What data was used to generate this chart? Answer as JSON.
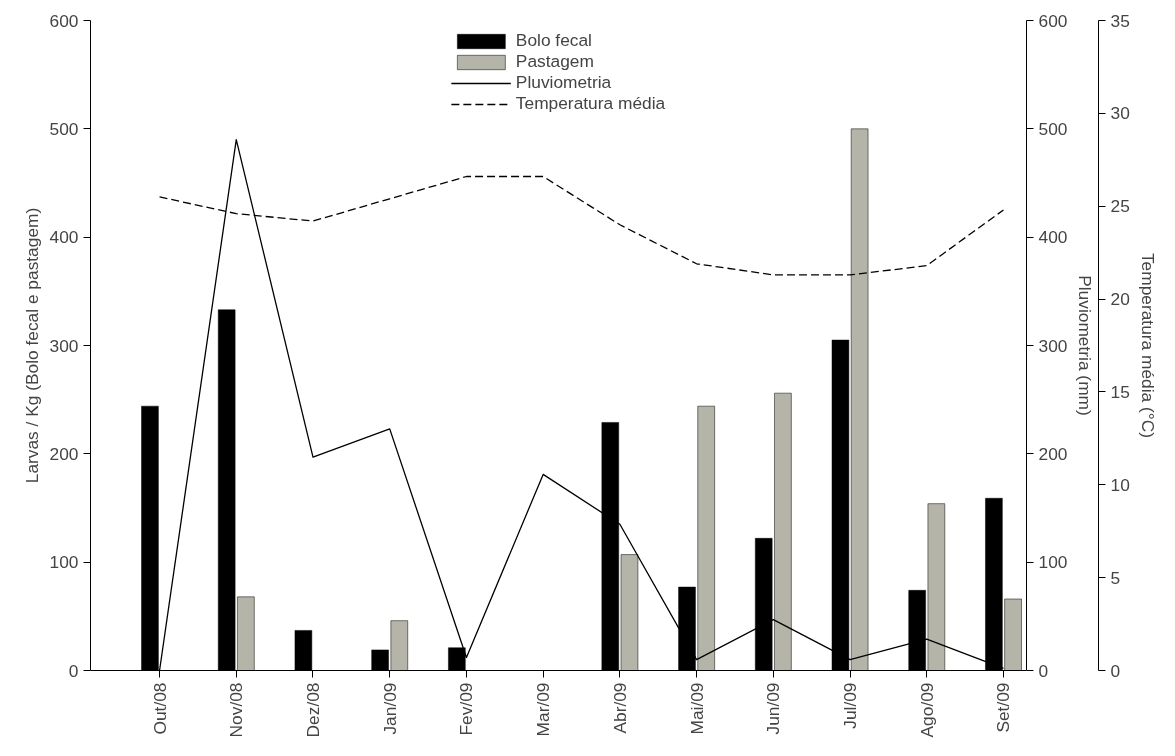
{
  "chart_data": {
    "type": "bar",
    "categories": [
      "Out/08",
      "Nov/08",
      "Dez/08",
      "Jan/09",
      "Fev/09",
      "Mar/09",
      "Abr/09",
      "Mai/09",
      "Jun/09",
      "Jul/09",
      "Ago/09",
      "Set/09"
    ],
    "ylabel": "Larvas / Kg (Bolo fecal e pastagem)",
    "y2label": "Pluviometria (mm)",
    "y3label": "Temperatura média (°C)",
    "ylim": [
      0,
      600
    ],
    "yticks": [
      0,
      100,
      200,
      300,
      400,
      500,
      600
    ],
    "y2lim": [
      0,
      600
    ],
    "y2ticks": [
      0,
      100,
      200,
      300,
      400,
      500,
      600
    ],
    "y3lim": [
      0,
      35
    ],
    "y3ticks": [
      0,
      5,
      10,
      15,
      20,
      25,
      30,
      35
    ],
    "grid": false,
    "legend": "top",
    "series": [
      {
        "name": "Bolo fecal",
        "color": "#000000",
        "values": [
          244,
          333,
          37,
          19,
          21,
          null,
          229,
          77,
          122,
          305,
          74,
          159
        ]
      },
      {
        "name": "Pastagem",
        "color": "#b4b4a8",
        "values": [
          null,
          68,
          null,
          46,
          null,
          null,
          107,
          244,
          256,
          500,
          154,
          66
        ]
      },
      {
        "name": "Pluviometria",
        "type": "line",
        "axis": "y2",
        "color": "#000000",
        "line_style": "solid",
        "values": [
          0,
          490,
          197,
          223,
          12,
          181,
          135,
          10,
          47,
          10,
          29,
          2
        ]
      },
      {
        "name": "Temperatura média",
        "type": "line",
        "axis": "y3",
        "color": "#000000",
        "line_style": "dashed",
        "values": [
          25.5,
          24.6,
          24.2,
          25.4,
          26.6,
          26.6,
          24.0,
          21.9,
          21.3,
          21.3,
          21.8,
          24.8
        ]
      }
    ]
  }
}
